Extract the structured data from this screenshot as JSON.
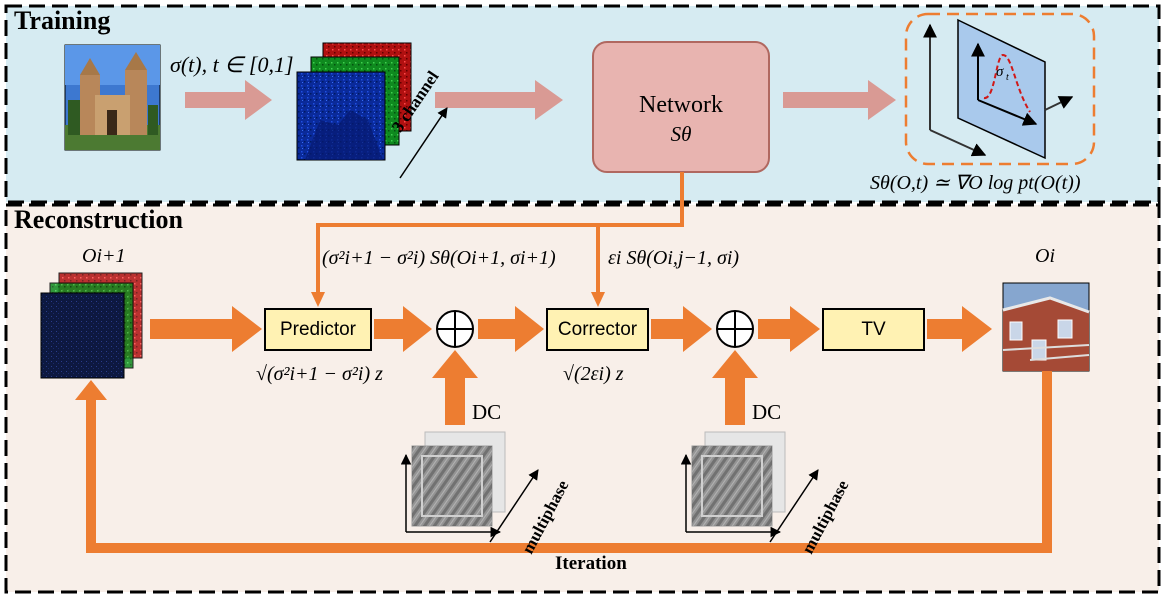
{
  "sections": {
    "training": "Training",
    "reconstruction": "Reconstruction"
  },
  "training": {
    "sigma_label": "σ(t), t ∈ [0,1]",
    "channel_label": "3 channel",
    "network_title": "Network",
    "network_symbol": "Sθ",
    "score_equation": "Sθ(O,t) ≃ ∇O log pt(O(t))"
  },
  "reconstruction": {
    "input_label": "Oi+1",
    "output_label": "Oi",
    "predictor_label": "Predictor",
    "corrector_label": "Corrector",
    "tv_label": "TV",
    "predictor_term": "(σ²i+1 − σ²i) Sθ(Oi+1, σi+1)",
    "corrector_term": "εi Sθ(Oi,j−1, σi)",
    "predictor_noise": "√(σ²i+1 − σ²i) z",
    "corrector_noise": "√(2εi) z",
    "dc_label_1": "DC",
    "dc_label_2": "DC",
    "multiphase_label_1": "multiphase",
    "multiphase_label_2": "multiphase",
    "iteration_label": "Iteration"
  },
  "colors": {
    "training_bg": "#d6ebf2",
    "reconstruction_bg": "#f8efe9",
    "network_fill": "#e8b4b0",
    "module_fill": "#fff2b3",
    "orange": "#ed7d31",
    "pink_arrow": "#d99a94"
  }
}
